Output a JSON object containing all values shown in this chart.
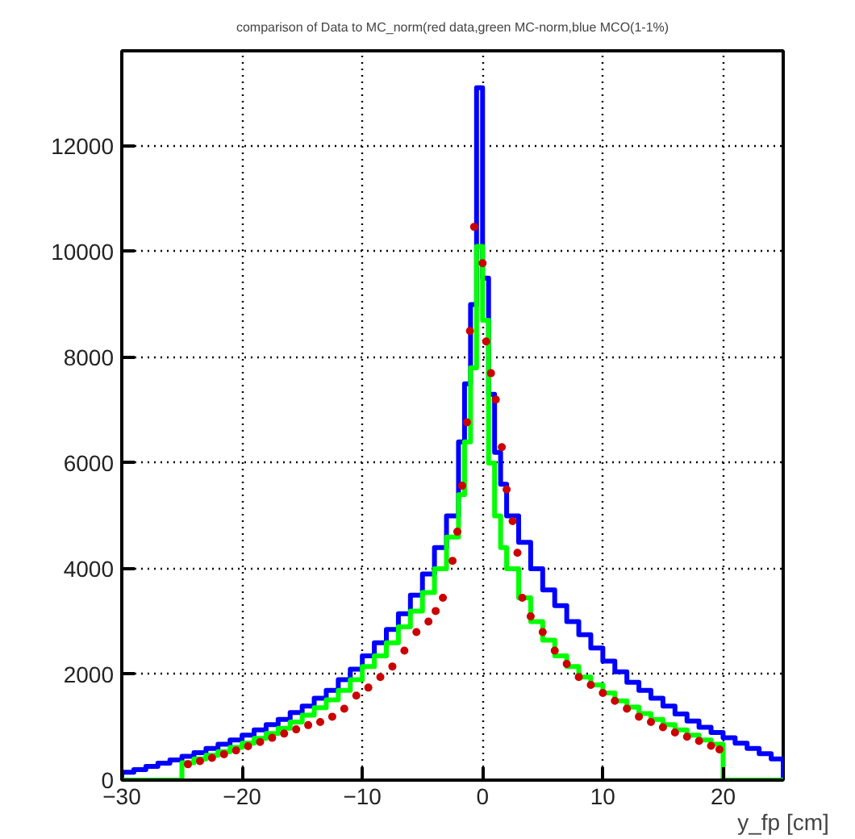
{
  "chart_data": {
    "type": "histogram",
    "title": "comparison of Data to MC_norm(red data,green MC-norm,blue MCO(1-1%)",
    "xlabel": "y_fp [cm]",
    "bins": [
      -30,
      -29,
      -28,
      -27,
      -26,
      -25,
      -24,
      -23,
      -22,
      -21,
      -20,
      -19,
      -18,
      -17,
      -16,
      -15,
      -14,
      -13,
      -12,
      -11,
      -10,
      -9,
      -8,
      -7,
      -6,
      -5,
      -4,
      -3,
      -2,
      -1.5,
      -1,
      -0.5,
      0,
      0.5,
      1,
      1.5,
      2,
      3,
      4,
      5,
      6,
      7,
      8,
      9,
      10,
      11,
      12,
      13,
      14,
      15,
      16,
      17,
      18,
      19,
      20,
      21,
      22,
      23,
      24,
      25
    ],
    "series": [
      {
        "color": "#0000ff",
        "values": [
          150,
          200,
          260,
          320,
          380,
          450,
          520,
          600,
          680,
          760,
          850,
          950,
          1050,
          1150,
          1280,
          1400,
          1550,
          1700,
          1900,
          2100,
          2350,
          2600,
          2850,
          3150,
          3500,
          3900,
          4400,
          5000,
          6400,
          7500,
          9000,
          13100,
          9500,
          7300,
          6200,
          5600,
          5000,
          4500,
          4000,
          3600,
          3300,
          3000,
          2750,
          2500,
          2250,
          2050,
          1850,
          1700,
          1550,
          1400,
          1250,
          1120,
          1000,
          900,
          800,
          700,
          600,
          500,
          400
        ]
      },
      {
        "color": "#00ff00",
        "values": [
          0,
          0,
          0,
          0,
          0,
          330,
          400,
          470,
          540,
          620,
          700,
          790,
          880,
          980,
          1100,
          1230,
          1370,
          1520,
          1700,
          1900,
          2150,
          2350,
          2600,
          2900,
          3200,
          3550,
          4000,
          4600,
          5400,
          6400,
          7800,
          10100,
          8700,
          6000,
          5000,
          4400,
          4000,
          3450,
          3000,
          2650,
          2350,
          2150,
          1950,
          1800,
          1650,
          1500,
          1380,
          1260,
          1150,
          1050,
          950,
          850,
          760,
          680,
          0,
          0,
          0,
          0,
          0
        ]
      },
      {
        "type": "scatter",
        "color": "#cc0000",
        "marker": "circle",
        "x": [
          -24.5,
          -23.5,
          -22.5,
          -21.5,
          -20.5,
          -19.5,
          -18.5,
          -17.5,
          -16.5,
          -15.5,
          -14.5,
          -13.5,
          -12.5,
          -11.5,
          -10.5,
          -9.5,
          -8.5,
          -7.5,
          -6.5,
          -5.5,
          -4.5,
          -3.9,
          -3.3,
          -2.5,
          -2.1,
          -1.7,
          -1.3,
          -1.05,
          -0.7,
          0,
          0.3,
          0.7,
          1.1,
          1.6,
          2.0,
          2.5,
          2.9,
          3.3,
          4,
          5,
          6,
          7,
          8,
          9,
          10,
          11,
          12,
          13,
          14,
          15,
          16,
          17,
          18,
          19,
          19.7
        ],
        "values": [
          300,
          360,
          420,
          490,
          560,
          640,
          720,
          800,
          880,
          960,
          1040,
          1100,
          1200,
          1350,
          1600,
          1750,
          1950,
          2150,
          2450,
          2800,
          3000,
          3200,
          3450,
          4150,
          4700,
          5570,
          6770,
          8500,
          10470,
          9780,
          8300,
          7700,
          7200,
          6300,
          5500,
          4900,
          4300,
          3450,
          3100,
          2800,
          2450,
          2200,
          1950,
          1800,
          1650,
          1500,
          1350,
          1200,
          1100,
          1000,
          900,
          820,
          740,
          650,
          580
        ]
      }
    ],
    "xlim": [
      -30,
      25
    ],
    "ylim": [
      0,
      13800
    ],
    "xticks": [
      -30,
      -20,
      -10,
      0,
      10,
      20
    ],
    "yticks": [
      0,
      2000,
      4000,
      6000,
      8000,
      10000,
      12000
    ],
    "grid": true
  }
}
